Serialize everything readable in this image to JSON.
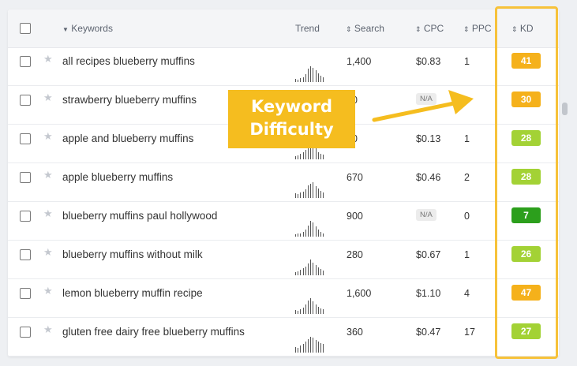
{
  "header": {
    "keywords_label": "Keywords",
    "trend_label": "Trend",
    "search_label": "Search",
    "cpc_label": "CPC",
    "ppc_label": "PPC",
    "kd_label": "KD"
  },
  "icons": {
    "sort": "sort-arrows-icon",
    "sort_desc": "sort-desc-icon",
    "star": "star-icon"
  },
  "rows": [
    {
      "keyword": "all recipes blueberry muffins",
      "search": "1,400",
      "cpc": "$0.83",
      "ppc": "1",
      "kd": "41",
      "kd_color": "#f5b11b",
      "trend": [
        0.2,
        0.15,
        0.25,
        0.3,
        0.5,
        0.85,
        1,
        0.9,
        0.75,
        0.55,
        0.4,
        0.3
      ]
    },
    {
      "keyword": "strawberry blueberry muffins",
      "search": "50",
      "cpc": "N/A",
      "ppc": "",
      "kd": "30",
      "kd_color": "#f5b11b",
      "trend": [
        0.2,
        0.2,
        0.3,
        0.35,
        0.5,
        0.8,
        1,
        0.85,
        0.7,
        0.5,
        0.35,
        0.25
      ]
    },
    {
      "keyword": "apple and blueberry muffins",
      "search": "30",
      "cpc": "$0.13",
      "ppc": "1",
      "kd": "28",
      "kd_color": "#a3d235",
      "trend": [
        0.2,
        0.25,
        0.35,
        0.45,
        0.6,
        0.75,
        1,
        0.8,
        0.7,
        0.45,
        0.35,
        0.3
      ]
    },
    {
      "keyword": "apple blueberry muffins",
      "search": "670",
      "cpc": "$0.46",
      "ppc": "2",
      "kd": "28",
      "kd_color": "#a3d235",
      "trend": [
        0.3,
        0.25,
        0.35,
        0.4,
        0.55,
        0.8,
        0.9,
        1,
        0.75,
        0.6,
        0.45,
        0.35
      ]
    },
    {
      "keyword": "blueberry muffins paul hollywood",
      "search": "900",
      "cpc": "N/A",
      "ppc": "0",
      "kd": "7",
      "kd_color": "#2c9f1c",
      "trend": [
        0.15,
        0.2,
        0.2,
        0.3,
        0.45,
        0.7,
        1,
        0.9,
        0.65,
        0.45,
        0.3,
        0.2
      ]
    },
    {
      "keyword": "blueberry muffins without milk",
      "search": "280",
      "cpc": "$0.67",
      "ppc": "1",
      "kd": "26",
      "kd_color": "#a3d235",
      "trend": [
        0.2,
        0.25,
        0.35,
        0.45,
        0.55,
        0.75,
        1,
        0.8,
        0.65,
        0.5,
        0.4,
        0.3
      ]
    },
    {
      "keyword": "lemon blueberry muffin recipe",
      "search": "1,600",
      "cpc": "$1.10",
      "ppc": "4",
      "kd": "47",
      "kd_color": "#f5b11b",
      "trend": [
        0.25,
        0.2,
        0.3,
        0.4,
        0.6,
        0.85,
        1,
        0.8,
        0.6,
        0.45,
        0.35,
        0.3
      ]
    },
    {
      "keyword": "gluten free dairy free blueberry muffins",
      "search": "360",
      "cpc": "$0.47",
      "ppc": "17",
      "kd": "27",
      "kd_color": "#a3d235",
      "trend": [
        0.35,
        0.3,
        0.45,
        0.55,
        0.7,
        0.85,
        1,
        0.95,
        0.8,
        0.7,
        0.6,
        0.55
      ]
    }
  ],
  "annotation": {
    "line1": "Keyword",
    "line2": "Difficulty",
    "color": "#f5bd1f"
  }
}
